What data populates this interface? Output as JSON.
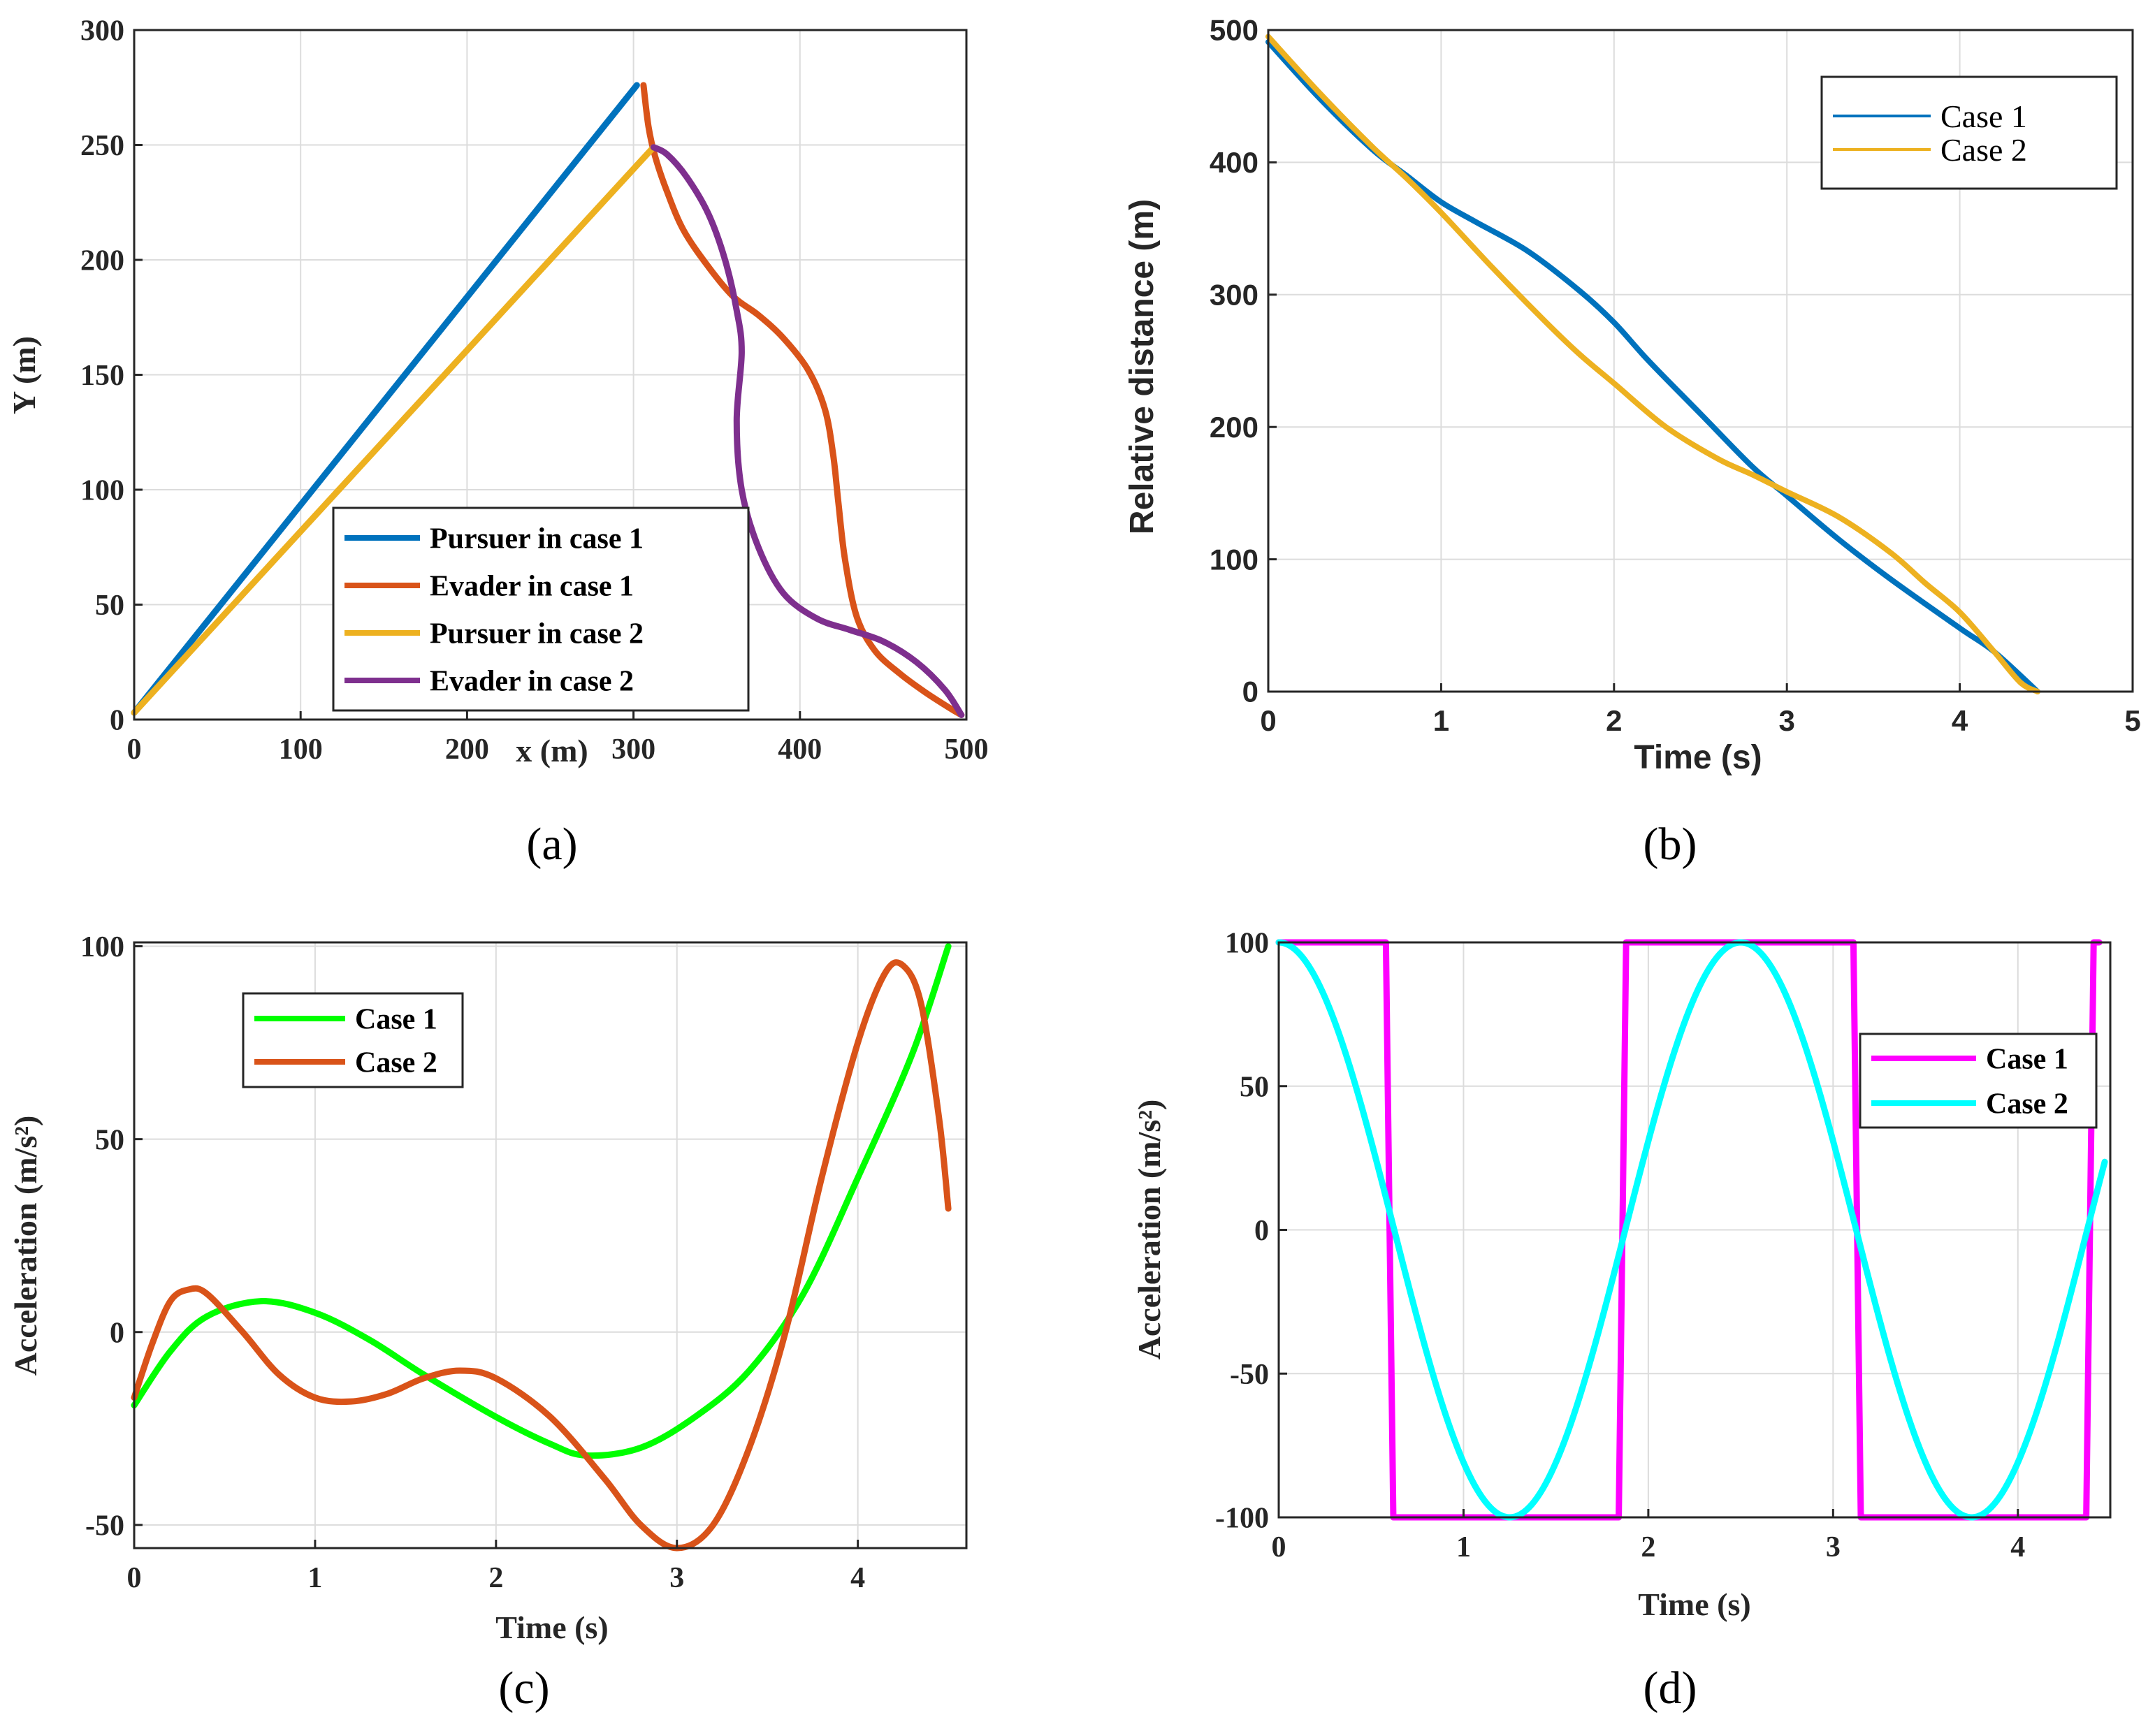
{
  "panels": [
    {
      "caption": "(a)",
      "chart_data": {
        "type": "line",
        "xlabel": "x (m)",
        "ylabel": "Y (m)",
        "xlim": [
          0,
          500
        ],
        "ylim": [
          0,
          300
        ],
        "xticks": [
          0,
          100,
          200,
          300,
          400,
          500
        ],
        "yticks": [
          0,
          50,
          100,
          150,
          200,
          250,
          300
        ],
        "grid": true,
        "legend": "bottom-center",
        "series": [
          {
            "name": "Pursuer in case 1",
            "color": "#0072BD",
            "points": [
              [
                0,
                3
              ],
              [
                302,
                276
              ]
            ]
          },
          {
            "name": "Evader in case 1",
            "color": "#D95319",
            "points": [
              [
                306,
                276
              ],
              [
                309,
                258
              ],
              [
                313,
                245
              ],
              [
                320,
                230
              ],
              [
                330,
                213
              ],
              [
                345,
                197
              ],
              [
                360,
                184
              ],
              [
                375,
                176
              ],
              [
                390,
                166
              ],
              [
                405,
                152
              ],
              [
                415,
                135
              ],
              [
                420,
                115
              ],
              [
                423,
                95
              ],
              [
                427,
                70
              ],
              [
                434,
                45
              ],
              [
                445,
                30
              ],
              [
                460,
                20
              ],
              [
                475,
                12
              ],
              [
                490,
                5
              ],
              [
                497,
                2
              ]
            ]
          },
          {
            "name": "Pursuer in case 2",
            "color": "#EDB120",
            "points": [
              [
                0,
                3
              ],
              [
                312,
                249
              ]
            ]
          },
          {
            "name": "Evader in case 2",
            "color": "#7E2F8E",
            "points": [
              [
                312,
                249
              ],
              [
                320,
                246
              ],
              [
                332,
                236
              ],
              [
                345,
                220
              ],
              [
                355,
                200
              ],
              [
                362,
                178
              ],
              [
                365,
                160
              ],
              [
                362,
                130
              ],
              [
                365,
                100
              ],
              [
                375,
                75
              ],
              [
                390,
                55
              ],
              [
                410,
                44
              ],
              [
                430,
                39
              ],
              [
                450,
                34
              ],
              [
                470,
                25
              ],
              [
                487,
                13
              ],
              [
                497,
                2
              ]
            ]
          }
        ]
      }
    },
    {
      "caption": "(b)",
      "chart_data": {
        "type": "line",
        "xlabel": "Time (s)",
        "ylabel": "Relative distance (m)",
        "xlim": [
          0,
          5
        ],
        "ylim": [
          0,
          500
        ],
        "xticks": [
          0,
          1,
          2,
          3,
          4,
          5
        ],
        "yticks": [
          0,
          100,
          200,
          300,
          400,
          500
        ],
        "grid": true,
        "legend": "top-right",
        "series": [
          {
            "name": "Case 1",
            "color": "#0072BD",
            "points": [
              [
                0,
                491
              ],
              [
                0.3,
                448
              ],
              [
                0.6,
                410
              ],
              [
                0.8,
                390
              ],
              [
                1.0,
                370
              ],
              [
                1.2,
                355
              ],
              [
                1.5,
                333
              ],
              [
                1.8,
                303
              ],
              [
                2.0,
                279
              ],
              [
                2.2,
                250
              ],
              [
                2.5,
                210
              ],
              [
                2.8,
                170
              ],
              [
                3.0,
                148
              ],
              [
                3.3,
                115
              ],
              [
                3.6,
                85
              ],
              [
                4.0,
                48
              ],
              [
                4.2,
                30
              ],
              [
                4.45,
                0
              ]
            ]
          },
          {
            "name": "Case 2",
            "color": "#EDB120",
            "points": [
              [
                0,
                495
              ],
              [
                0.3,
                452
              ],
              [
                0.6,
                412
              ],
              [
                0.8,
                388
              ],
              [
                1.0,
                362
              ],
              [
                1.3,
                320
              ],
              [
                1.6,
                280
              ],
              [
                1.8,
                255
              ],
              [
                2.0,
                233
              ],
              [
                2.3,
                200
              ],
              [
                2.6,
                176
              ],
              [
                2.8,
                164
              ],
              [
                3.0,
                151
              ],
              [
                3.3,
                132
              ],
              [
                3.6,
                105
              ],
              [
                3.8,
                82
              ],
              [
                4.0,
                60
              ],
              [
                4.2,
                30
              ],
              [
                4.35,
                7
              ],
              [
                4.45,
                0
              ]
            ]
          }
        ]
      }
    },
    {
      "caption": "(c)",
      "chart_data": {
        "type": "line",
        "xlabel": "Time (s)",
        "ylabel": "Acceleration (m/s²)",
        "xlim": [
          0,
          4.6
        ],
        "ylim": [
          -56,
          101
        ],
        "xticks": [
          0,
          1,
          2,
          3,
          4
        ],
        "yticks": [
          -50,
          0,
          50,
          100
        ],
        "grid": true,
        "legend": "top-left",
        "series": [
          {
            "name": "Case 1",
            "color": "#00FF00",
            "points": [
              [
                0,
                -19
              ],
              [
                0.2,
                -5
              ],
              [
                0.4,
                4
              ],
              [
                0.7,
                8
              ],
              [
                1.0,
                5
              ],
              [
                1.3,
                -2
              ],
              [
                1.6,
                -11
              ],
              [
                2.0,
                -22
              ],
              [
                2.3,
                -29
              ],
              [
                2.5,
                -32
              ],
              [
                2.8,
                -30
              ],
              [
                3.1,
                -22
              ],
              [
                3.4,
                -10
              ],
              [
                3.7,
                10
              ],
              [
                4.0,
                40
              ],
              [
                4.3,
                72
              ],
              [
                4.5,
                100
              ]
            ]
          },
          {
            "name": "Case 2",
            "color": "#D95319",
            "points": [
              [
                0,
                -17
              ],
              [
                0.1,
                -3
              ],
              [
                0.2,
                8
              ],
              [
                0.3,
                11
              ],
              [
                0.4,
                10
              ],
              [
                0.6,
                0
              ],
              [
                0.8,
                -11
              ],
              [
                1.0,
                -17
              ],
              [
                1.2,
                -18
              ],
              [
                1.4,
                -16
              ],
              [
                1.6,
                -12
              ],
              [
                1.8,
                -10
              ],
              [
                2.0,
                -12
              ],
              [
                2.3,
                -22
              ],
              [
                2.6,
                -38
              ],
              [
                2.8,
                -50
              ],
              [
                3.0,
                -56
              ],
              [
                3.2,
                -50
              ],
              [
                3.4,
                -30
              ],
              [
                3.6,
                0
              ],
              [
                3.8,
                40
              ],
              [
                4.0,
                75
              ],
              [
                4.15,
                93
              ],
              [
                4.25,
                95
              ],
              [
                4.35,
                85
              ],
              [
                4.45,
                55
              ],
              [
                4.5,
                32
              ]
            ]
          }
        ]
      }
    },
    {
      "caption": "(d)",
      "chart_data": {
        "type": "line",
        "xlabel": "Time (s)",
        "ylabel": "Acceleration (m/s²)",
        "xlim": [
          0,
          4.5
        ],
        "ylim": [
          -100,
          100
        ],
        "xticks": [
          0,
          1,
          2,
          3,
          4
        ],
        "yticks": [
          -100,
          -50,
          0,
          50,
          100
        ],
        "grid": true,
        "legend": "top-right",
        "series": [
          {
            "name": "Case 1",
            "color": "#FF00FF",
            "points": [
              [
                0,
                100
              ],
              [
                0.58,
                100
              ],
              [
                0.62,
                -100
              ],
              [
                1.84,
                -100
              ],
              [
                1.88,
                100
              ],
              [
                3.11,
                100
              ],
              [
                3.15,
                -100
              ],
              [
                4.37,
                -100
              ],
              [
                4.41,
                100
              ],
              [
                4.44,
                100
              ]
            ]
          },
          {
            "name": "Case 2",
            "color": "#00FFFF",
            "points": "cosine"
          }
        ]
      }
    }
  ]
}
